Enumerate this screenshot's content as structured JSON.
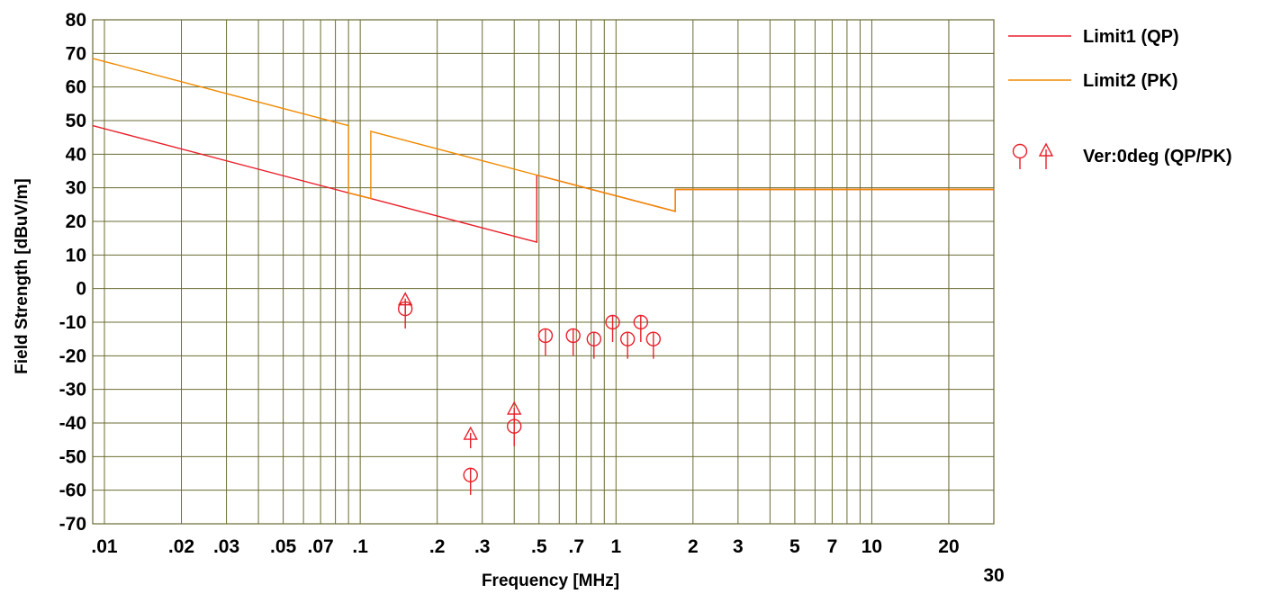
{
  "colors": {
    "grid": "#6b6b33",
    "limit1": "#e8202a",
    "limit2": "#f08a00",
    "markers": "#e8202a"
  },
  "chart_data": {
    "type": "scatter",
    "xscale": "log",
    "xlim": [
      0.009,
      30
    ],
    "ylim": [
      -70,
      80
    ],
    "xlabel": "Frequency [MHz]",
    "ylabel": "Field Strength [dBuV/m]",
    "xticks": [
      {
        "v": 0.01,
        "label": ".01"
      },
      {
        "v": 0.02,
        "label": ".02"
      },
      {
        "v": 0.03,
        "label": ".03"
      },
      {
        "v": 0.05,
        "label": ".05"
      },
      {
        "v": 0.07,
        "label": ".07"
      },
      {
        "v": 0.1,
        "label": ".1"
      },
      {
        "v": 0.2,
        "label": ".2"
      },
      {
        "v": 0.3,
        "label": ".3"
      },
      {
        "v": 0.5,
        "label": ".5"
      },
      {
        "v": 0.7,
        "label": ".7"
      },
      {
        "v": 1,
        "label": "1"
      },
      {
        "v": 2,
        "label": "2"
      },
      {
        "v": 3,
        "label": "3"
      },
      {
        "v": 5,
        "label": "5"
      },
      {
        "v": 7,
        "label": "7"
      },
      {
        "v": 10,
        "label": "10"
      },
      {
        "v": 20,
        "label": "20"
      },
      {
        "v": 30,
        "label": "30"
      }
    ],
    "yticks": [
      80,
      70,
      60,
      50,
      40,
      30,
      20,
      10,
      0,
      -10,
      -20,
      -30,
      -40,
      -50,
      -60,
      -70
    ],
    "series": [
      {
        "name": "Limit1 (QP)",
        "kind": "line",
        "points": [
          [
            0.009,
            48.5
          ],
          [
            0.09,
            28.5
          ],
          [
            0.11,
            26.8
          ],
          [
            0.49,
            13.8
          ],
          [
            0.49,
            33.8
          ],
          [
            1.705,
            23.0
          ],
          [
            1.705,
            29.5
          ],
          [
            30,
            29.5
          ]
        ]
      },
      {
        "name": "Limit2 (PK)",
        "kind": "line",
        "points": [
          [
            0.009,
            68.5
          ],
          [
            0.09,
            48.5
          ],
          [
            0.09,
            28.5
          ],
          [
            0.11,
            26.8
          ],
          [
            0.11,
            46.8
          ],
          [
            0.49,
            33.8
          ],
          [
            1.705,
            23.0
          ],
          [
            1.705,
            29.5
          ],
          [
            30,
            29.5
          ]
        ]
      },
      {
        "name": "Ver:0deg (QP/PK)",
        "kind": "markers",
        "qp": [
          {
            "x": 0.15,
            "y": -6
          },
          {
            "x": 0.27,
            "y": -55.5
          },
          {
            "x": 0.4,
            "y": -41
          },
          {
            "x": 0.53,
            "y": -14
          },
          {
            "x": 0.68,
            "y": -14
          },
          {
            "x": 0.82,
            "y": -15
          },
          {
            "x": 0.97,
            "y": -10
          },
          {
            "x": 1.11,
            "y": -15
          },
          {
            "x": 1.25,
            "y": -10
          },
          {
            "x": 1.4,
            "y": -15
          }
        ],
        "pk": [
          {
            "x": 0.15,
            "y": -3.5
          },
          {
            "x": 0.27,
            "y": -43.5
          },
          {
            "x": 0.4,
            "y": -36
          }
        ]
      }
    ],
    "legend": [
      {
        "label": "Limit1 (QP)",
        "style": "line-red"
      },
      {
        "label": "Limit2 (PK)",
        "style": "line-orange"
      },
      {
        "label": "Ver:0deg (QP/PK)",
        "style": "markers"
      }
    ],
    "legend_position": "right"
  }
}
